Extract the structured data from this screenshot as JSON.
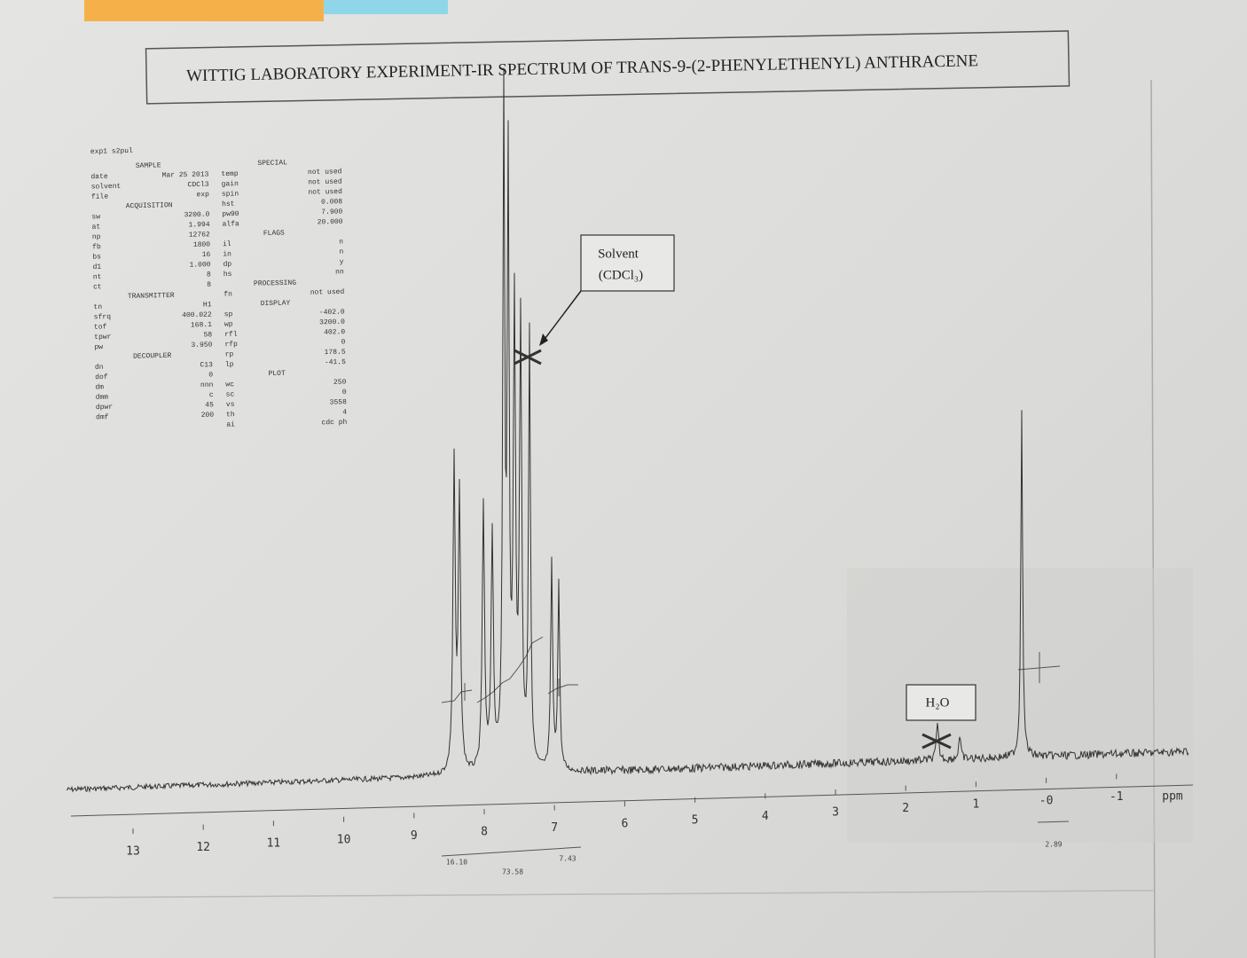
{
  "title": "WITTIG LABORATORY EXPERIMENT-IR SPECTRUM OF TRANS-9-(2-PHENYLETHENYL) ANTHRACENE",
  "parameters": {
    "header": "exp1 s2pul",
    "left": [
      [
        "SAMPLE"
      ],
      [
        "date",
        "Mar 25 2013"
      ],
      [
        "solvent",
        "CDCl3"
      ],
      [
        "file",
        "exp"
      ],
      [
        "ACQUISITION"
      ],
      [
        "sw",
        "3200.0"
      ],
      [
        "at",
        "1.994"
      ],
      [
        "np",
        "12762"
      ],
      [
        "fb",
        "1800"
      ],
      [
        "bs",
        "16"
      ],
      [
        "d1",
        "1.000"
      ],
      [
        "nt",
        "8"
      ],
      [
        "ct",
        "8"
      ],
      [
        "TRANSMITTER"
      ],
      [
        "tn",
        "H1"
      ],
      [
        "sfrq",
        "400.022"
      ],
      [
        "tof",
        "168.1"
      ],
      [
        "tpwr",
        "58"
      ],
      [
        "pw",
        "3.950"
      ],
      [
        "DECOUPLER"
      ],
      [
        "dn",
        "C13"
      ],
      [
        "dof",
        "0"
      ],
      [
        "dm",
        "nnn"
      ],
      [
        "dmm",
        "c"
      ],
      [
        "dpwr",
        "45"
      ],
      [
        "dmf",
        "200"
      ]
    ],
    "right": [
      [
        "SPECIAL"
      ],
      [
        "temp",
        "not used"
      ],
      [
        "gain",
        "not used"
      ],
      [
        "spin",
        "not used"
      ],
      [
        "hst",
        "0.008"
      ],
      [
        "pw90",
        "7.900"
      ],
      [
        "alfa",
        "20.000"
      ],
      [
        "FLAGS"
      ],
      [
        "il",
        "n"
      ],
      [
        "in",
        "n"
      ],
      [
        "dp",
        "y"
      ],
      [
        "hs",
        "nn"
      ],
      [
        "PROCESSING"
      ],
      [
        "fn",
        "not used"
      ],
      [
        "DISPLAY"
      ],
      [
        "sp",
        "-402.0"
      ],
      [
        "wp",
        "3200.0"
      ],
      [
        "rfl",
        "402.0"
      ],
      [
        "rfp",
        "0"
      ],
      [
        "rp",
        "178.5"
      ],
      [
        "lp",
        "-41.5"
      ],
      [
        "PLOT"
      ],
      [
        "wc",
        "250"
      ],
      [
        "sc",
        "0"
      ],
      [
        "vs",
        "3558"
      ],
      [
        "th",
        "4"
      ],
      [
        "ai",
        "cdc ph"
      ]
    ]
  },
  "annotations": {
    "solvent": [
      "Solvent",
      "(CDCl₃)"
    ],
    "water": "H₂O"
  },
  "axis": {
    "ticks": [
      "13",
      "12",
      "11",
      "10",
      "9",
      "8",
      "7",
      "6",
      "5",
      "4",
      "3",
      "2",
      "1",
      "-0",
      "-1"
    ],
    "unit": "ppm"
  },
  "integrals": [
    "16.10",
    "73.58",
    "7.43",
    "2.89"
  ]
}
